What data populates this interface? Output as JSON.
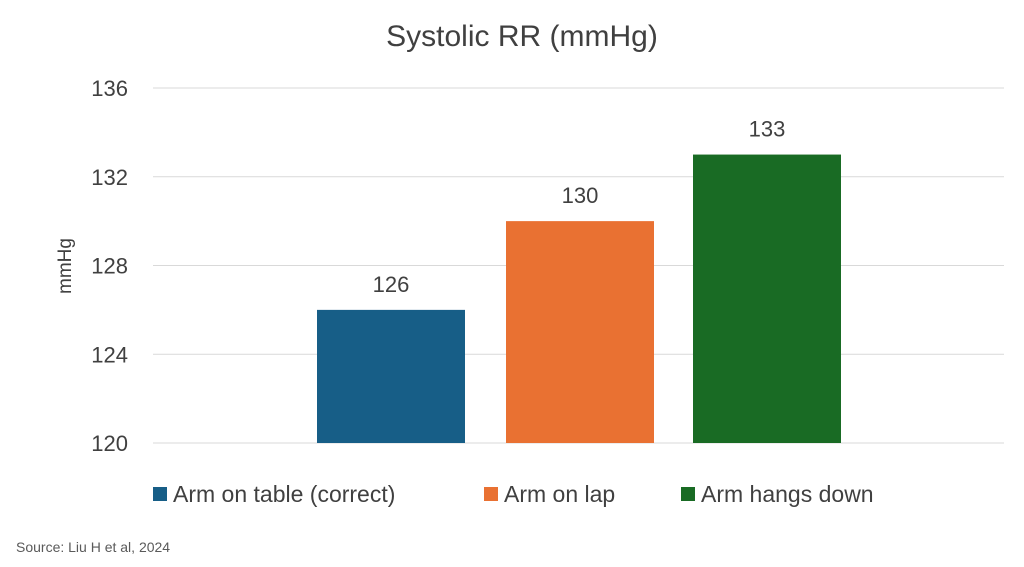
{
  "chart_data": {
    "type": "bar",
    "title": "Systolic RR (mmHg)",
    "xlabel": "",
    "ylabel": "mmHg",
    "ylim": [
      120,
      136
    ],
    "yticks": [
      120,
      124,
      128,
      132,
      136
    ],
    "grid": true,
    "legend": "bottom",
    "categories": [
      "Arm on table (correct)",
      "Arm on lap",
      "Arm hangs down"
    ],
    "series": [
      {
        "name": "Arm on table (correct)",
        "values": [
          126,
          null,
          null
        ],
        "color": "#175E87"
      },
      {
        "name": "Arm on lap",
        "values": [
          null,
          130,
          null
        ],
        "color": "#E97132"
      },
      {
        "name": "Arm hangs down",
        "values": [
          null,
          null,
          133
        ],
        "color": "#196B24"
      }
    ]
  },
  "source": "Source: Liu H et al, 2024"
}
